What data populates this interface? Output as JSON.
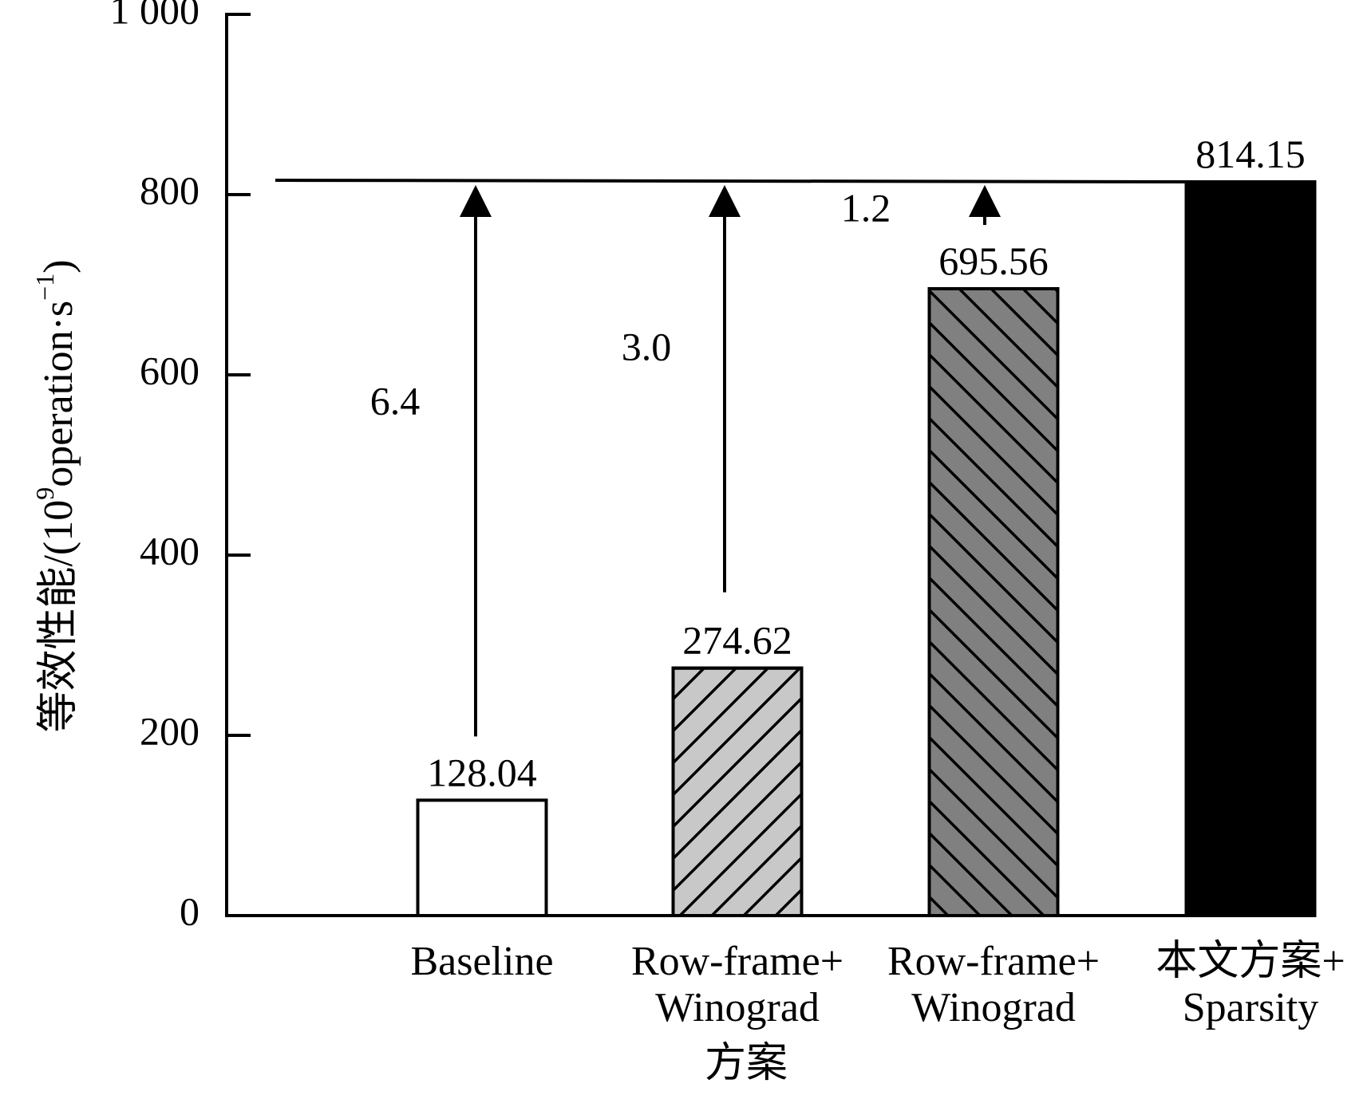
{
  "chart_data": {
    "type": "bar",
    "title": "",
    "xlabel": "方案",
    "ylabel": "等效性能/(10",
    "ylabel_sup1": "9",
    "ylabel_mid": "operation·s",
    "ylabel_sup2": "−1",
    "ylabel_end": ")",
    "ylim": [
      0,
      1000
    ],
    "yticks": [
      {
        "value": 0,
        "label": "0"
      },
      {
        "value": 200,
        "label": "200"
      },
      {
        "value": 400,
        "label": "400"
      },
      {
        "value": 600,
        "label": "600"
      },
      {
        "value": 800,
        "label": "800"
      },
      {
        "value": 1000,
        "label": "1 000"
      }
    ],
    "grid": false,
    "legend": "none",
    "categories": [
      [
        "Baseline"
      ],
      [
        "Row-frame+",
        "Winograd"
      ],
      [
        "Row-frame+",
        "Winograd"
      ],
      [
        "本文方案+",
        "Sparsity"
      ]
    ],
    "values": [
      128.04,
      274.62,
      695.56,
      814.15
    ],
    "value_labels": [
      "128.04",
      "274.62",
      "695.56",
      "814.15"
    ],
    "bar_styles": [
      {
        "fill": "#ffffff",
        "hatch": "none"
      },
      {
        "fill": "#c8c8c8",
        "hatch": "slash"
      },
      {
        "fill": "#808080",
        "hatch": "backslash"
      },
      {
        "fill": "#000000",
        "hatch": "none"
      }
    ],
    "reference_line": {
      "value": 814.15
    },
    "speedup_labels": [
      "6.4",
      "3.0",
      "1.2"
    ],
    "colors": {
      "axis": "#000000",
      "text": "#000000"
    }
  }
}
